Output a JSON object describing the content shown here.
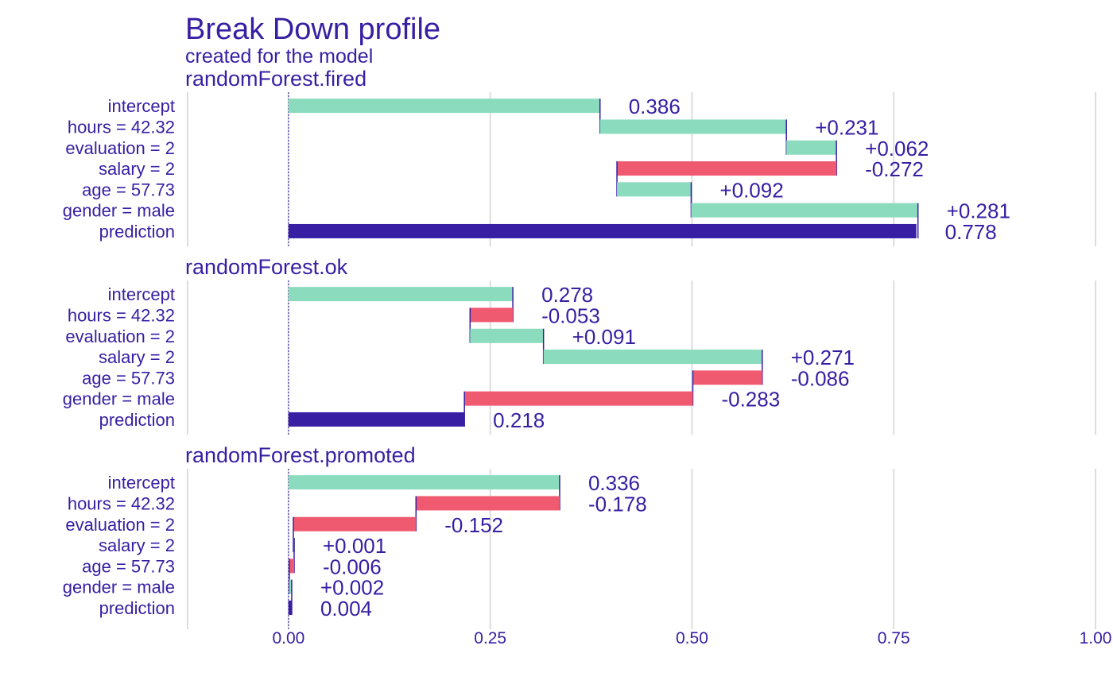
{
  "chart_data": {
    "type": "bar",
    "title": "Break Down profile",
    "subtitle": "created for the  model",
    "xlim": [
      -0.125,
      1.0
    ],
    "xticks": [
      "0.00",
      "0.25",
      "0.50",
      "0.75",
      "1.00"
    ],
    "xtick_values": [
      0.0,
      0.25,
      0.5,
      0.75,
      1.0
    ],
    "grid": true,
    "colors": {
      "positive": "#8bdcbe",
      "negative": "#f05a71",
      "prediction": "#371ea3",
      "text": "#371ea3"
    },
    "panels": [
      {
        "name": "randomForest.fired",
        "rows": [
          {
            "variable": "intercept",
            "start": 0,
            "end": 0.386,
            "contribution": 0.386,
            "label": "0.386",
            "sign": "X"
          },
          {
            "variable": "hours = 42.32",
            "start": 0.386,
            "end": 0.617,
            "contribution": 0.231,
            "label": "+0.231",
            "sign": "1"
          },
          {
            "variable": "evaluation = 2",
            "start": 0.617,
            "end": 0.679,
            "contribution": 0.062,
            "label": "+0.062",
            "sign": "1"
          },
          {
            "variable": "salary = 2",
            "start": 0.679,
            "end": 0.407,
            "contribution": -0.272,
            "label": "-0.272",
            "sign": "-1"
          },
          {
            "variable": "age = 57.73",
            "start": 0.407,
            "end": 0.499,
            "contribution": 0.092,
            "label": "+0.092",
            "sign": "1"
          },
          {
            "variable": "gender = male",
            "start": 0.499,
            "end": 0.78,
            "contribution": 0.281,
            "label": "+0.281",
            "sign": "1"
          },
          {
            "variable": "prediction",
            "start": 0,
            "end": 0.778,
            "contribution": 0.778,
            "label": "0.778",
            "sign": "X"
          }
        ]
      },
      {
        "name": "randomForest.ok",
        "rows": [
          {
            "variable": "intercept",
            "start": 0,
            "end": 0.278,
            "contribution": 0.278,
            "label": "0.278",
            "sign": "X"
          },
          {
            "variable": "hours = 42.32",
            "start": 0.278,
            "end": 0.225,
            "contribution": -0.053,
            "label": "-0.053",
            "sign": "-1"
          },
          {
            "variable": "evaluation = 2",
            "start": 0.225,
            "end": 0.316,
            "contribution": 0.091,
            "label": "+0.091",
            "sign": "1"
          },
          {
            "variable": "salary = 2",
            "start": 0.316,
            "end": 0.587,
            "contribution": 0.271,
            "label": "+0.271",
            "sign": "1"
          },
          {
            "variable": "age = 57.73",
            "start": 0.587,
            "end": 0.501,
            "contribution": -0.086,
            "label": "-0.086",
            "sign": "-1"
          },
          {
            "variable": "gender = male",
            "start": 0.501,
            "end": 0.218,
            "contribution": -0.283,
            "label": "-0.283",
            "sign": "-1"
          },
          {
            "variable": "prediction",
            "start": 0,
            "end": 0.218,
            "contribution": 0.218,
            "label": "0.218",
            "sign": "X"
          }
        ]
      },
      {
        "name": "randomForest.promoted",
        "rows": [
          {
            "variable": "intercept",
            "start": 0,
            "end": 0.336,
            "contribution": 0.336,
            "label": "0.336",
            "sign": "X"
          },
          {
            "variable": "hours = 42.32",
            "start": 0.336,
            "end": 0.158,
            "contribution": -0.178,
            "label": "-0.178",
            "sign": "-1"
          },
          {
            "variable": "evaluation = 2",
            "start": 0.158,
            "end": 0.006,
            "contribution": -0.152,
            "label": "-0.152",
            "sign": "-1"
          },
          {
            "variable": "salary = 2",
            "start": 0.006,
            "end": 0.007,
            "contribution": 0.001,
            "label": "+0.001",
            "sign": "1"
          },
          {
            "variable": "age = 57.73",
            "start": 0.007,
            "end": 0.001,
            "contribution": -0.006,
            "label": "-0.006",
            "sign": "-1"
          },
          {
            "variable": "gender = male",
            "start": 0.001,
            "end": 0.004,
            "contribution": 0.002,
            "label": "+0.002",
            "sign": "1"
          },
          {
            "variable": "prediction",
            "start": 0,
            "end": 0.004,
            "contribution": 0.004,
            "label": "0.004",
            "sign": "X"
          }
        ]
      }
    ]
  }
}
